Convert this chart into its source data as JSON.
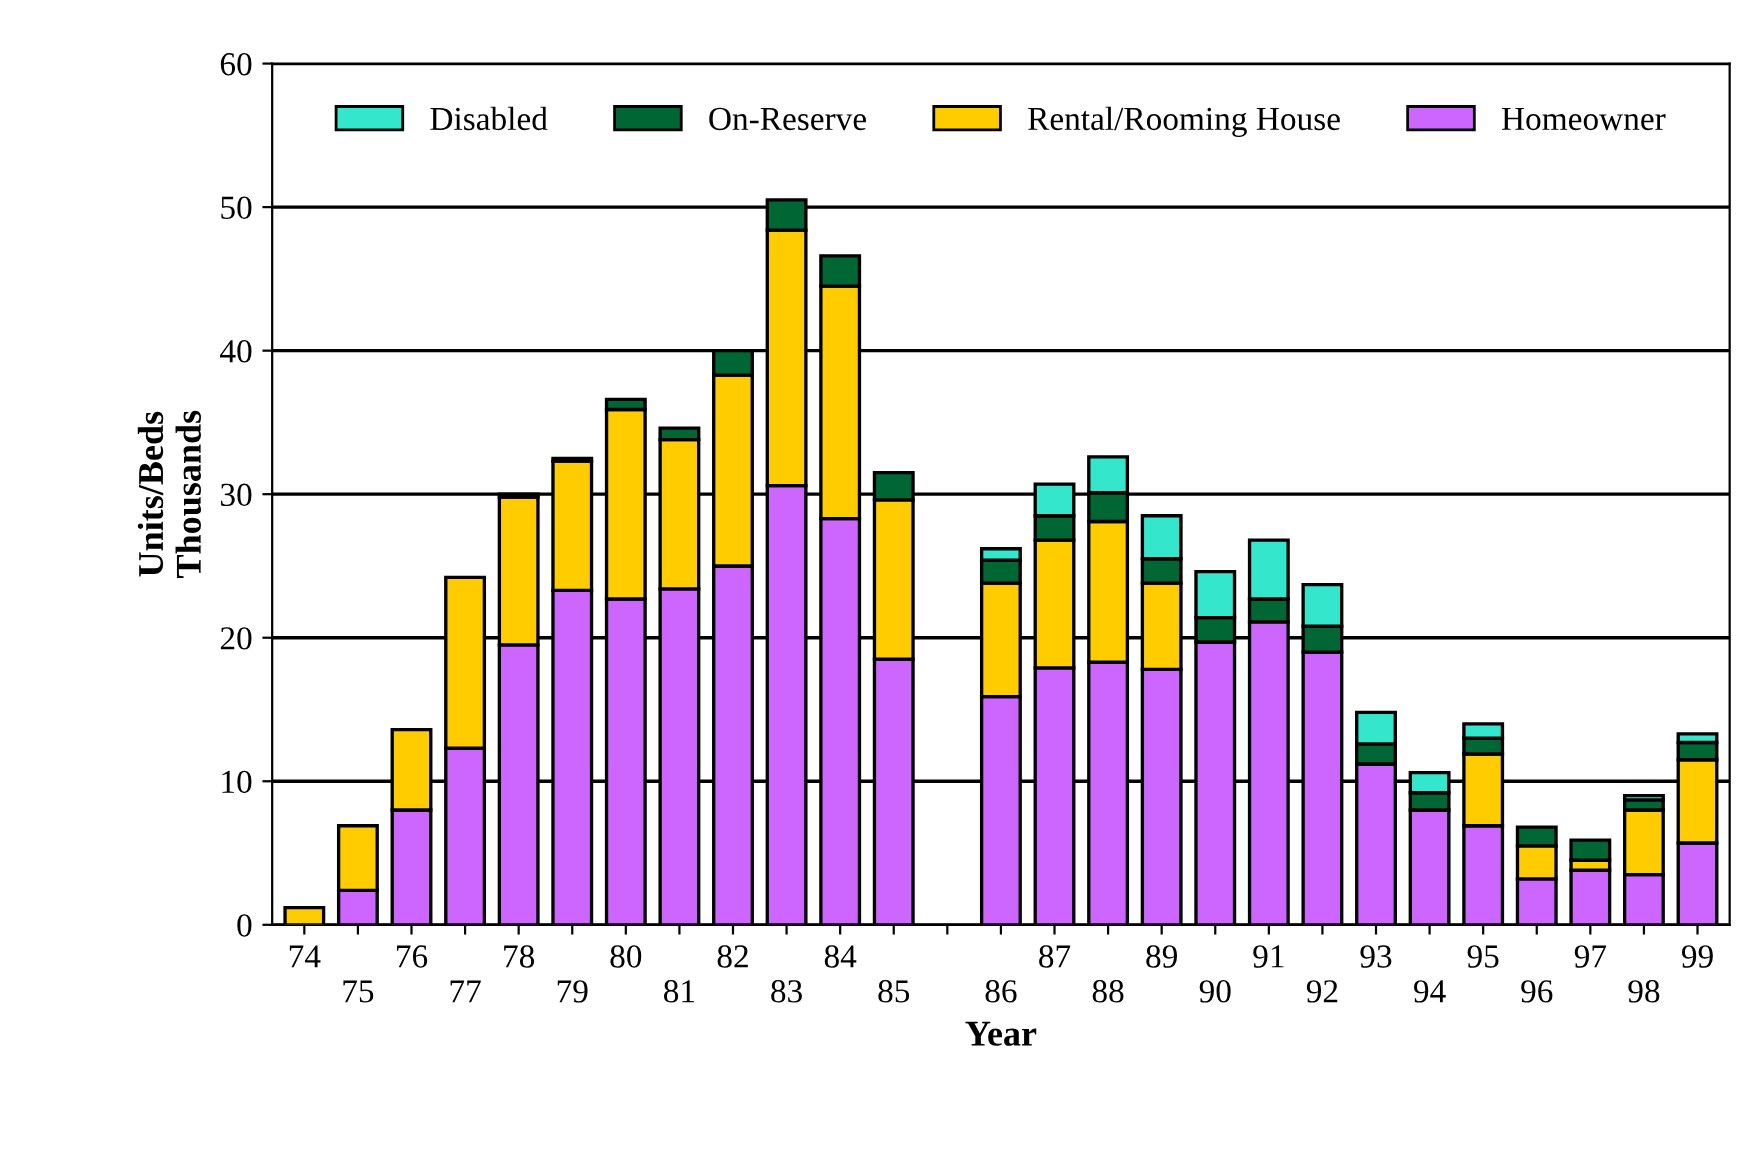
{
  "chart_data": {
    "type": "bar",
    "stacked": true,
    "xlabel": "Year",
    "ylabel": "Units/Beds\nThousands",
    "categories": [
      "74",
      "75",
      "76",
      "77",
      "78",
      "79",
      "80",
      "81",
      "82",
      "83",
      "84",
      "85",
      null,
      "86",
      "87",
      "88",
      "89",
      "90",
      "91",
      "92",
      "93",
      "94",
      "95",
      "96",
      "97",
      "98",
      "99"
    ],
    "series": [
      {
        "name": "Homeowner",
        "color": "#cc66ff",
        "values": [
          null,
          2.4,
          8.0,
          12.3,
          19.5,
          23.3,
          22.7,
          23.4,
          25.0,
          30.6,
          28.3,
          18.5,
          null,
          15.9,
          17.9,
          18.3,
          17.8,
          19.7,
          21.1,
          19.0,
          11.2,
          8.0,
          6.9,
          3.2,
          3.8,
          3.5,
          5.7
        ]
      },
      {
        "name": "Rental/Rooming House",
        "color": "#ffcc00",
        "values": [
          1.2,
          4.5,
          5.6,
          11.9,
          10.3,
          9.0,
          13.2,
          10.4,
          13.3,
          17.8,
          16.2,
          11.1,
          null,
          7.9,
          8.9,
          9.8,
          6.0,
          0,
          0,
          0,
          0,
          0,
          5.0,
          2.3,
          0.7,
          4.5,
          5.8
        ]
      },
      {
        "name": "On-Reserve",
        "color": "#006633",
        "values": [
          0,
          0,
          0,
          0,
          0.2,
          0.2,
          0.7,
          0.8,
          1.7,
          2.1,
          2.1,
          1.9,
          null,
          1.6,
          1.7,
          2.0,
          1.7,
          1.7,
          1.6,
          1.8,
          1.4,
          1.2,
          1.1,
          1.3,
          1.4,
          0.7,
          1.2
        ]
      },
      {
        "name": "Disabled",
        "color": "#33e6cc",
        "values": [
          0,
          0,
          0,
          0,
          0,
          0,
          0,
          0,
          0,
          0,
          0,
          0,
          null,
          0.8,
          2.2,
          2.5,
          3.0,
          3.2,
          4.1,
          2.9,
          2.2,
          1.4,
          1.0,
          0,
          0,
          0.3,
          0.6
        ]
      }
    ],
    "ylim": [
      0,
      60
    ],
    "yticks": [
      0,
      10,
      20,
      30,
      40,
      50,
      60
    ],
    "grid": "y",
    "legend": "top"
  }
}
